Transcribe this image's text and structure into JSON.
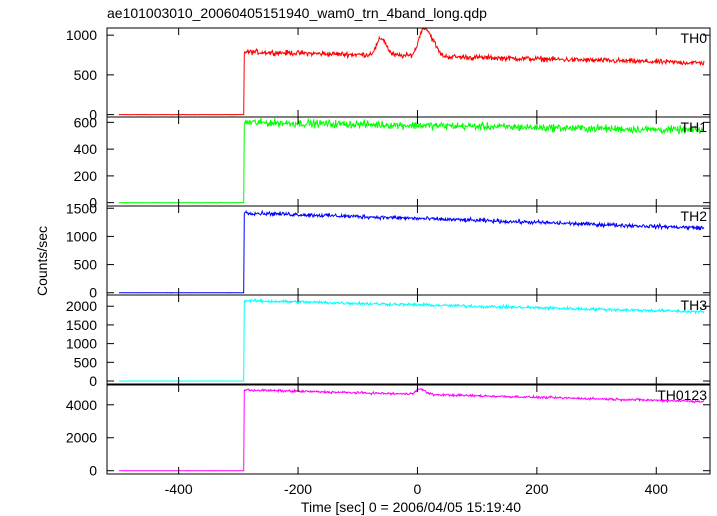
{
  "chart_data": {
    "type": "line",
    "title": "ae101003010_20060405151940_wam0_trn_4band_long.qdp",
    "xlabel": "Time [sec] 0 = 2006/04/05 15:19:40",
    "ylabel": "Counts/sec",
    "xlim": [
      -520,
      490
    ],
    "xticks": [
      -400,
      -200,
      0,
      200,
      400
    ],
    "x_start": -500,
    "x_end": 480,
    "onset_time": -290,
    "grid": false,
    "panels": [
      {
        "name": "TH0",
        "color": "#ff0000",
        "ylim": [
          -30,
          1090
        ],
        "yticks": [
          0,
          500,
          1000
        ],
        "baseline": 0,
        "level_start": 790,
        "level_end": 650,
        "noise": 28,
        "features": [
          {
            "x": -60,
            "value": 960
          },
          {
            "x": 10,
            "value": 1070
          },
          {
            "x": 25,
            "value": 900
          }
        ]
      },
      {
        "name": "TH1",
        "color": "#00ff00",
        "ylim": [
          -25,
          640
        ],
        "yticks": [
          0,
          200,
          400,
          600
        ],
        "baseline": 0,
        "level_start": 600,
        "level_end": 540,
        "noise": 25,
        "features": []
      },
      {
        "name": "TH2",
        "color": "#0000ff",
        "ylim": [
          -40,
          1540
        ],
        "yticks": [
          0,
          500,
          1000,
          1500
        ],
        "baseline": 0,
        "level_start": 1420,
        "level_end": 1150,
        "noise": 30,
        "features": []
      },
      {
        "name": "TH3",
        "color": "#00ffff",
        "ylim": [
          -80,
          2300
        ],
        "yticks": [
          0,
          500,
          1000,
          1500,
          2000
        ],
        "baseline": 0,
        "level_start": 2150,
        "level_end": 1850,
        "noise": 35,
        "features": []
      },
      {
        "name": "TH0123",
        "color": "#ff00ff",
        "ylim": [
          -200,
          5200
        ],
        "yticks": [
          0,
          2000,
          4000
        ],
        "baseline": 0,
        "level_start": 4900,
        "level_end": 4200,
        "noise": 60,
        "features": [
          {
            "x": 5,
            "value": 4950
          }
        ]
      }
    ]
  }
}
